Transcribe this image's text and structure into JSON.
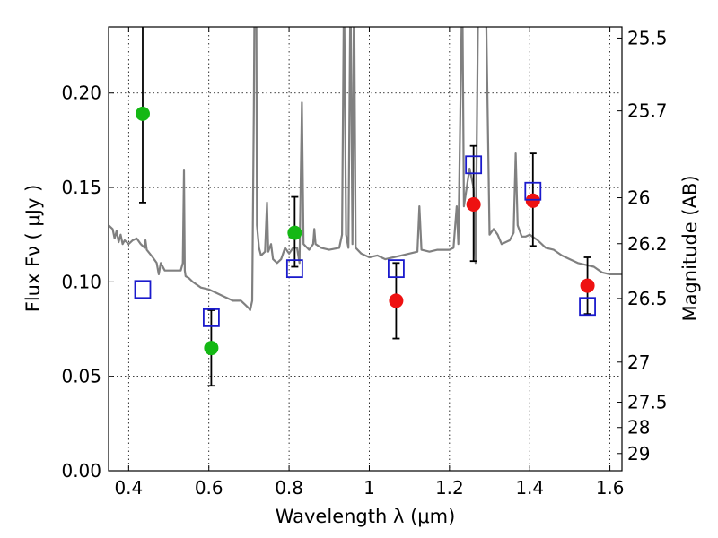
{
  "chart_data": {
    "type": "scatter",
    "xlabel": "Wavelength  λ (μm)",
    "ylabel": "Flux  Fν  ( μJy )",
    "y2label": "Magnitude (AB)",
    "xlim": [
      0.35,
      1.63
    ],
    "ylim": [
      0.0,
      0.235
    ],
    "grid": true,
    "x_ticks": [
      0.4,
      0.6,
      0.8,
      1.0,
      1.2,
      1.4,
      1.6
    ],
    "x_tick_labels": [
      "0.4",
      "0.6",
      "0.8",
      "1",
      "1.2",
      "1.4",
      "1.6"
    ],
    "y_ticks": [
      0.0,
      0.05,
      0.1,
      0.15,
      0.2
    ],
    "y_tick_labels": [
      "0.00",
      "0.05",
      "0.10",
      "0.15",
      "0.20"
    ],
    "mag_ticks": [
      25.5,
      25.7,
      26,
      26.2,
      26.5,
      27,
      27.5,
      28,
      29
    ],
    "mag_tick_labels": [
      "25.5",
      "25.7",
      "26",
      "26.2",
      "26.5",
      "27",
      "27.5",
      "28",
      "29"
    ],
    "colors": {
      "green": "#14b814",
      "red": "#ee1111",
      "blue": "#1a1acc",
      "spectrum": "#808080",
      "errorbar": "#000000"
    },
    "series": [
      {
        "marker": "circle",
        "color": "green",
        "points": [
          {
            "x": 0.435,
            "y": 0.189,
            "ylo": 0.142,
            "yhi": 0.24
          },
          {
            "x": 0.606,
            "y": 0.065,
            "ylo": 0.045,
            "yhi": 0.085
          },
          {
            "x": 0.814,
            "y": 0.126,
            "ylo": 0.108,
            "yhi": 0.145
          }
        ]
      },
      {
        "marker": "circle",
        "color": "red",
        "points": [
          {
            "x": 1.067,
            "y": 0.09,
            "ylo": 0.07,
            "yhi": 0.11
          },
          {
            "x": 1.26,
            "y": 0.141,
            "ylo": 0.111,
            "yhi": 0.172
          },
          {
            "x": 1.408,
            "y": 0.143,
            "ylo": 0.119,
            "yhi": 0.168
          },
          {
            "x": 1.544,
            "y": 0.098,
            "ylo": 0.083,
            "yhi": 0.113
          }
        ]
      },
      {
        "marker": "square-open",
        "color": "blue",
        "points": [
          {
            "x": 0.435,
            "y": 0.096
          },
          {
            "x": 0.606,
            "y": 0.081
          },
          {
            "x": 0.814,
            "y": 0.107
          },
          {
            "x": 1.067,
            "y": 0.107
          },
          {
            "x": 1.26,
            "y": 0.162
          },
          {
            "x": 1.408,
            "y": 0.148
          },
          {
            "x": 1.544,
            "y": 0.087
          }
        ]
      }
    ],
    "spectrum": {
      "color": "spectrum",
      "points": [
        [
          0.35,
          0.13
        ],
        [
          0.36,
          0.128
        ],
        [
          0.365,
          0.123
        ],
        [
          0.37,
          0.127
        ],
        [
          0.375,
          0.121
        ],
        [
          0.38,
          0.125
        ],
        [
          0.385,
          0.12
        ],
        [
          0.39,
          0.122
        ],
        [
          0.4,
          0.12
        ],
        [
          0.41,
          0.122
        ],
        [
          0.42,
          0.123
        ],
        [
          0.43,
          0.12
        ],
        [
          0.44,
          0.118
        ],
        [
          0.442,
          0.122
        ],
        [
          0.445,
          0.117
        ],
        [
          0.46,
          0.113
        ],
        [
          0.47,
          0.11
        ],
        [
          0.475,
          0.104
        ],
        [
          0.48,
          0.11
        ],
        [
          0.49,
          0.106
        ],
        [
          0.5,
          0.106
        ],
        [
          0.51,
          0.106
        ],
        [
          0.52,
          0.106
        ],
        [
          0.53,
          0.106
        ],
        [
          0.535,
          0.11
        ],
        [
          0.538,
          0.159
        ],
        [
          0.54,
          0.106
        ],
        [
          0.542,
          0.103
        ],
        [
          0.55,
          0.102
        ],
        [
          0.56,
          0.1
        ],
        [
          0.58,
          0.097
        ],
        [
          0.6,
          0.096
        ],
        [
          0.62,
          0.094
        ],
        [
          0.64,
          0.092
        ],
        [
          0.66,
          0.09
        ],
        [
          0.68,
          0.09
        ],
        [
          0.69,
          0.088
        ],
        [
          0.7,
          0.086
        ],
        [
          0.703,
          0.085
        ],
        [
          0.708,
          0.09
        ],
        [
          0.712,
          0.19
        ],
        [
          0.714,
          0.26
        ],
        [
          0.718,
          0.26
        ],
        [
          0.72,
          0.13
        ],
        [
          0.725,
          0.118
        ],
        [
          0.73,
          0.114
        ],
        [
          0.74,
          0.116
        ],
        [
          0.745,
          0.142
        ],
        [
          0.748,
          0.116
        ],
        [
          0.755,
          0.12
        ],
        [
          0.76,
          0.112
        ],
        [
          0.77,
          0.11
        ],
        [
          0.78,
          0.112
        ],
        [
          0.79,
          0.118
        ],
        [
          0.8,
          0.115
        ],
        [
          0.81,
          0.118
        ],
        [
          0.82,
          0.118
        ],
        [
          0.826,
          0.11
        ],
        [
          0.832,
          0.195
        ],
        [
          0.836,
          0.12
        ],
        [
          0.85,
          0.117
        ],
        [
          0.86,
          0.12
        ],
        [
          0.863,
          0.128
        ],
        [
          0.866,
          0.12
        ],
        [
          0.88,
          0.118
        ],
        [
          0.9,
          0.117
        ],
        [
          0.925,
          0.118
        ],
        [
          0.932,
          0.125
        ],
        [
          0.937,
          0.26
        ],
        [
          0.942,
          0.125
        ],
        [
          0.948,
          0.118
        ],
        [
          0.953,
          0.26
        ],
        [
          0.958,
          0.12
        ],
        [
          0.962,
          0.26
        ],
        [
          0.966,
          0.118
        ],
        [
          0.98,
          0.115
        ],
        [
          1.0,
          0.113
        ],
        [
          1.02,
          0.114
        ],
        [
          1.04,
          0.112
        ],
        [
          1.06,
          0.113
        ],
        [
          1.08,
          0.114
        ],
        [
          1.1,
          0.115
        ],
        [
          1.12,
          0.116
        ],
        [
          1.125,
          0.14
        ],
        [
          1.13,
          0.117
        ],
        [
          1.15,
          0.116
        ],
        [
          1.17,
          0.117
        ],
        [
          1.2,
          0.117
        ],
        [
          1.21,
          0.118
        ],
        [
          1.218,
          0.14
        ],
        [
          1.222,
          0.12
        ],
        [
          1.232,
          0.26
        ],
        [
          1.236,
          0.14
        ],
        [
          1.25,
          0.16
        ],
        [
          1.26,
          0.15
        ],
        [
          1.265,
          0.11
        ],
        [
          1.272,
          0.26
        ],
        [
          1.29,
          0.26
        ],
        [
          1.3,
          0.125
        ],
        [
          1.31,
          0.128
        ],
        [
          1.32,
          0.125
        ],
        [
          1.33,
          0.12
        ],
        [
          1.34,
          0.121
        ],
        [
          1.35,
          0.122
        ],
        [
          1.36,
          0.126
        ],
        [
          1.365,
          0.168
        ],
        [
          1.37,
          0.13
        ],
        [
          1.38,
          0.124
        ],
        [
          1.39,
          0.124
        ],
        [
          1.4,
          0.125
        ],
        [
          1.42,
          0.122
        ],
        [
          1.44,
          0.118
        ],
        [
          1.46,
          0.117
        ],
        [
          1.48,
          0.114
        ],
        [
          1.5,
          0.112
        ],
        [
          1.52,
          0.11
        ],
        [
          1.54,
          0.109
        ],
        [
          1.56,
          0.108
        ],
        [
          1.58,
          0.105
        ],
        [
          1.6,
          0.104
        ],
        [
          1.63,
          0.104
        ]
      ]
    }
  }
}
